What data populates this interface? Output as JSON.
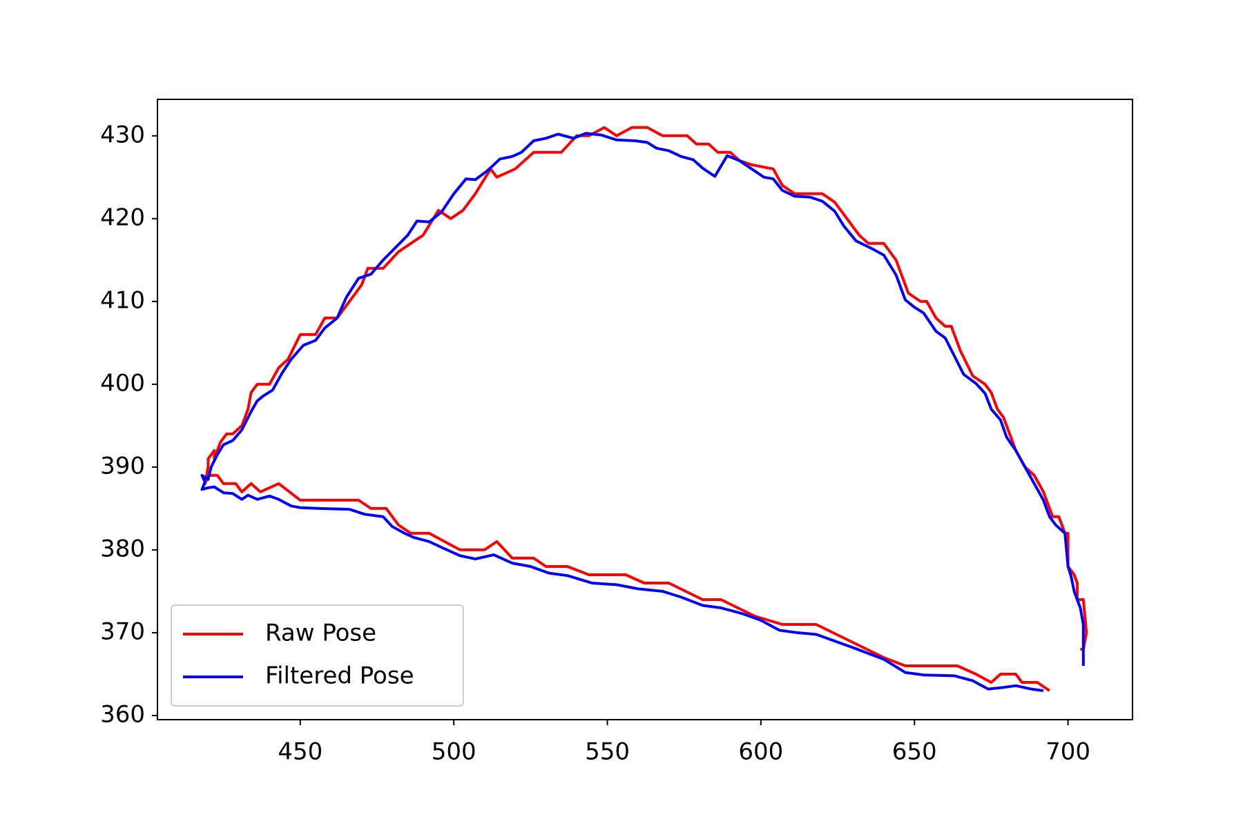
{
  "chart_data": {
    "type": "line",
    "xlim": [
      403.5,
      721
    ],
    "ylim": [
      359.5,
      434.4
    ],
    "xticks": [
      450,
      500,
      550,
      600,
      650,
      700
    ],
    "yticks": [
      360,
      370,
      380,
      390,
      400,
      410,
      420,
      430
    ],
    "legend": "lower left",
    "series": [
      {
        "name": "Raw Pose",
        "color": "#ff0000",
        "x": [
          694,
          690,
          685,
          683,
          678,
          675,
          670,
          664,
          647,
          640,
          618,
          607,
          598,
          587,
          581,
          570,
          562,
          556,
          544,
          537,
          530,
          526,
          519,
          514,
          510,
          506,
          502,
          492,
          486,
          482,
          478,
          473,
          469,
          450,
          443,
          437,
          434,
          431,
          429,
          425,
          423,
          420,
          419,
          420,
          420,
          422,
          422,
          424,
          426,
          428,
          431,
          433,
          434,
          436,
          440,
          443,
          446,
          450,
          455,
          458,
          462,
          466,
          470,
          472,
          477,
          482,
          486,
          490,
          495,
          499,
          503,
          507,
          512,
          514,
          520,
          526,
          535,
          540,
          544,
          549,
          553,
          558,
          563,
          568,
          576,
          579,
          583,
          586,
          590,
          593,
          597,
          604,
          607,
          611,
          620,
          624,
          628,
          632,
          635,
          640,
          644,
          646,
          648,
          652,
          654,
          657,
          660,
          662,
          665,
          669,
          673,
          675,
          677,
          679,
          681,
          683,
          686,
          689,
          692,
          694,
          695,
          697,
          699,
          700,
          700,
          702,
          703,
          703,
          705,
          706,
          705,
          704
        ],
        "values": [
          363,
          364,
          364,
          365,
          365,
          364,
          365,
          366,
          366,
          367,
          371,
          371,
          372,
          374,
          374,
          376,
          376,
          377,
          377,
          378,
          378,
          379,
          379,
          381,
          380,
          380,
          380,
          382,
          382,
          383,
          385,
          385,
          386,
          386,
          388,
          387,
          388,
          387,
          388,
          388,
          389,
          389,
          388,
          390,
          391,
          392,
          391,
          393,
          394,
          394,
          395,
          397,
          399,
          400,
          400,
          402,
          403,
          406,
          406,
          408,
          408,
          410,
          412,
          414,
          414,
          416,
          417,
          418,
          421,
          420,
          421,
          423,
          426,
          425,
          426,
          428,
          428,
          430,
          430,
          431,
          430,
          431,
          431,
          430,
          430,
          429,
          429,
          428,
          428,
          427,
          426.5,
          426,
          424,
          423,
          423,
          422,
          420,
          418,
          417,
          417,
          415,
          413,
          411,
          410,
          410,
          408,
          407,
          407,
          404,
          401,
          400,
          399,
          397,
          396,
          394,
          392,
          390,
          389,
          387,
          385,
          384,
          384,
          382,
          382,
          378,
          377,
          376,
          374,
          374,
          370,
          368,
          368
        ]
      },
      {
        "name": "Filtered Pose",
        "color": "#0000ff",
        "x": [
          692,
          688,
          683,
          679,
          674,
          669,
          663,
          653,
          647,
          640,
          630,
          618,
          612,
          606,
          600,
          594,
          587,
          581,
          574,
          568,
          560,
          553,
          545,
          537,
          531,
          525,
          519,
          513,
          507,
          502,
          496,
          492,
          487,
          484,
          480,
          477,
          471,
          466,
          456,
          450,
          447,
          443,
          440,
          436,
          433,
          431,
          428,
          425,
          422,
          420,
          418,
          419,
          418,
          420,
          421,
          423,
          425,
          428,
          431,
          434,
          436,
          438,
          441,
          444,
          447,
          451,
          455,
          458,
          462,
          465,
          469,
          473,
          477,
          481,
          485,
          488,
          492,
          496,
          500,
          504,
          507,
          511,
          515,
          519,
          522,
          526,
          530,
          534,
          539,
          543,
          548,
          553,
          559,
          563,
          566,
          570,
          574,
          578,
          581,
          585,
          589,
          593,
          597,
          601,
          604,
          607,
          611,
          616,
          620,
          624,
          627,
          631,
          636,
          640,
          644,
          647,
          650,
          653,
          657,
          660,
          663,
          666,
          670,
          673,
          675,
          678,
          680,
          683,
          686,
          689,
          692,
          694,
          696,
          699,
          700,
          701,
          702,
          704,
          705,
          705,
          705,
          705
        ],
        "values": [
          363,
          363.2,
          363.6,
          363.4,
          363.2,
          364.2,
          364.8,
          364.9,
          365.2,
          366.8,
          368.2,
          369.8,
          370,
          370.3,
          371.5,
          372.3,
          373,
          373.3,
          374.3,
          375,
          375.3,
          375.8,
          376,
          376.9,
          377.2,
          378,
          378.4,
          379.4,
          378.9,
          379.3,
          380.3,
          381,
          381.5,
          382,
          382.8,
          384,
          384.3,
          384.9,
          385,
          385.1,
          385.3,
          386.1,
          386.5,
          386.1,
          386.6,
          386.1,
          386.8,
          386.9,
          387.6,
          387.5,
          387.3,
          388.2,
          389,
          388.5,
          390,
          391.5,
          392.7,
          393.2,
          394.5,
          396.7,
          398,
          398.6,
          399.3,
          401.3,
          403,
          404.7,
          405.3,
          406.8,
          408,
          410.5,
          412.8,
          413.3,
          415,
          416.5,
          418,
          419.7,
          419.6,
          420.8,
          423,
          424.8,
          424.7,
          425.8,
          427.2,
          427.5,
          428,
          429.4,
          429.7,
          430.2,
          429.7,
          430.3,
          430.1,
          429.5,
          429.4,
          429.2,
          428.5,
          428.2,
          427.5,
          427.1,
          426.1,
          425.1,
          427.6,
          427,
          426,
          425,
          424.8,
          423.4,
          422.7,
          422.6,
          422.1,
          420.9,
          419.1,
          417.3,
          416.4,
          415.6,
          413.2,
          410.2,
          409.3,
          408.6,
          406.4,
          405.6,
          403.4,
          401.2,
          400.1,
          398.9,
          397,
          395.7,
          393.6,
          392,
          390,
          388,
          386,
          384,
          383,
          382,
          378,
          376.8,
          375,
          373,
          371,
          369,
          367,
          366
        ]
      }
    ]
  }
}
